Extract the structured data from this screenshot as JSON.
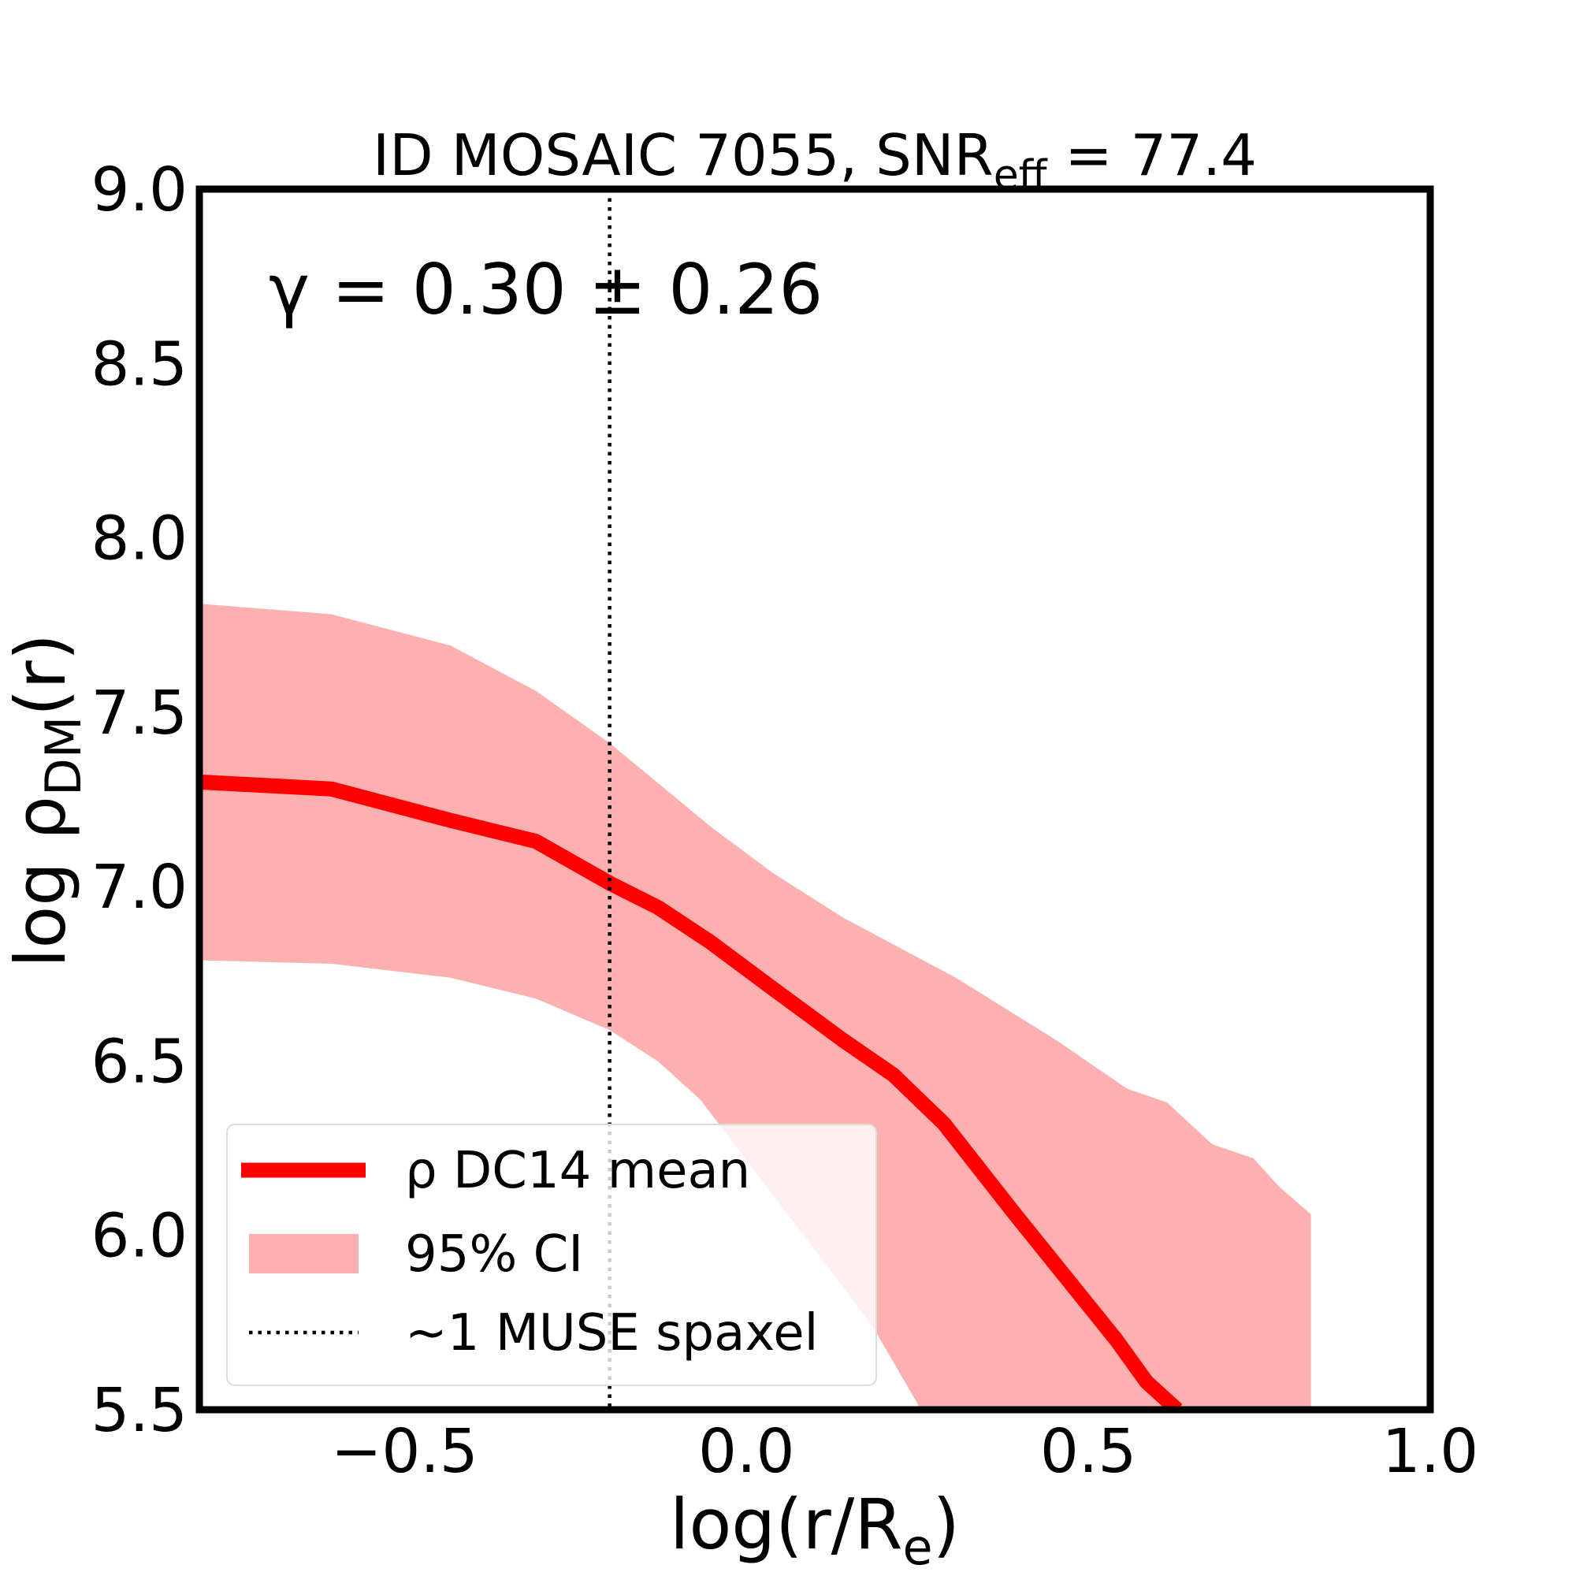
{
  "chart_data": {
    "type": "line",
    "title": {
      "text": "ID MOSAIC 7055, SNR",
      "sub": "eff",
      "rest": " = 77.4"
    },
    "annotation": "γ = 0.30 ± 0.26",
    "xlabel": {
      "text": "log(r/R",
      "sub": "e",
      "rest": ")"
    },
    "ylabel": {
      "text": "log ρ",
      "sub": "DM",
      "rest": "(r)"
    },
    "xlim": [
      -0.8,
      1.0
    ],
    "ylim": [
      5.5,
      9.0
    ],
    "xticks": [
      {
        "value": -0.5,
        "label": "−0.5"
      },
      {
        "value": 0,
        "label": "0.0"
      },
      0.5,
      {
        "value": 1,
        "label": "1.0"
      }
    ],
    "yticks": [
      {
        "value": 5.5,
        "label": "5.5"
      },
      {
        "value": 6,
        "label": "6.0"
      },
      6.5,
      {
        "value": 7,
        "label": "7.0"
      },
      7.5,
      {
        "value": 8,
        "label": "8.0"
      },
      8.5,
      {
        "value": 9,
        "label": "9.0"
      }
    ],
    "legend": "lower left",
    "series": [
      {
        "name": "95% CI",
        "type": "band",
        "color": "#fdb0b0",
        "x_upper": [
          -0.8,
          -0.607,
          -0.433,
          -0.308,
          -0.2,
          -0.052,
          0.037,
          0.141,
          0.304,
          0.452,
          0.556,
          0.615,
          0.681,
          0.741,
          0.778,
          0.825
        ],
        "upper": [
          7.81,
          7.78,
          7.69,
          7.56,
          7.41,
          7.17,
          7.04,
          6.91,
          6.74,
          6.56,
          6.42,
          6.38,
          6.26,
          6.22,
          6.14,
          6.06
        ],
        "x_lower": [
          -0.8,
          -0.607,
          -0.433,
          -0.308,
          -0.2,
          -0.129,
          -0.067,
          0.007,
          0.096,
          0.185,
          0.256
        ],
        "lower": [
          6.79,
          6.78,
          6.74,
          6.68,
          6.59,
          6.5,
          6.39,
          6.2,
          5.97,
          5.74,
          5.5
        ]
      },
      {
        "name": "ρ DC14 mean",
        "type": "line",
        "color": "#ff0000",
        "x": [
          -0.8,
          -0.607,
          -0.433,
          -0.308,
          -0.2,
          -0.129,
          -0.052,
          0.037,
          0.141,
          0.215,
          0.289,
          0.393,
          0.467,
          0.541,
          0.585,
          0.63
        ],
        "values": [
          7.3,
          7.28,
          7.19,
          7.13,
          7.01,
          6.94,
          6.84,
          6.71,
          6.56,
          6.46,
          6.32,
          6.06,
          5.88,
          5.7,
          5.58,
          5.5
        ]
      }
    ],
    "reference_line": {
      "name": "~1 MUSE spaxel",
      "x": -0.2,
      "color": "#000000"
    }
  }
}
